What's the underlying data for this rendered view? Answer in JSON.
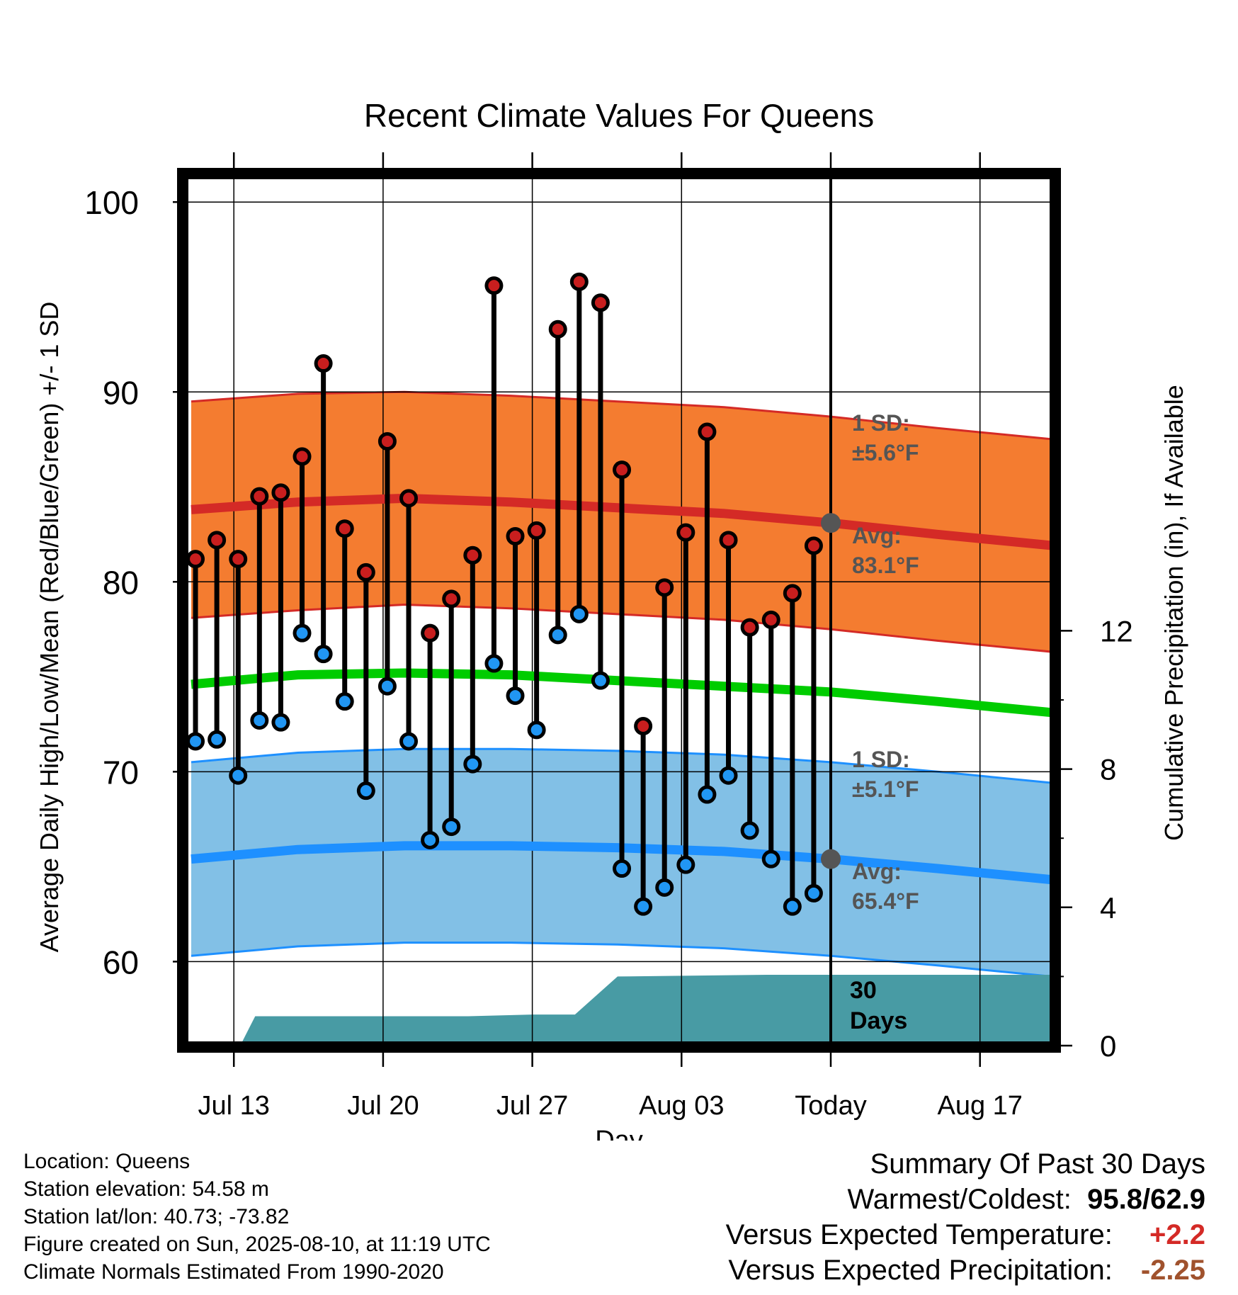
{
  "chart_data": {
    "type": "line",
    "title": "Recent Climate Values For Queens",
    "xlabel": "Day",
    "ylabel": "Average Daily High/Low/Mean (Red/Blue/Green) +/- 1 SD",
    "y2label": "Cumulative Precipitation (in), If Available",
    "ylim": [
      55.5,
      101.5
    ],
    "y_ticks": [
      "60",
      "70",
      "80",
      "90",
      "100"
    ],
    "y2lim": [
      0,
      24.5
    ],
    "y2_ticks": [
      "0",
      "4",
      "8",
      "12"
    ],
    "x_start": "Jul 11",
    "x_end": "Aug 21",
    "x_ticks": [
      {
        "day": 2,
        "label": "Jul 13"
      },
      {
        "day": 9,
        "label": "Jul 20"
      },
      {
        "day": 16,
        "label": "Jul 27"
      },
      {
        "day": 23,
        "label": "Aug 03"
      },
      {
        "day": 30,
        "label": "Today"
      },
      {
        "day": 37,
        "label": "Aug 17"
      }
    ],
    "days": [
      "Jul 11",
      "Jul 12",
      "Jul 13",
      "Jul 14",
      "Jul 15",
      "Jul 16",
      "Jul 17",
      "Jul 18",
      "Jul 19",
      "Jul 20",
      "Jul 21",
      "Jul 22",
      "Jul 23",
      "Jul 24",
      "Jul 25",
      "Jul 26",
      "Jul 27",
      "Jul 28",
      "Jul 29",
      "Jul 30",
      "Jul 31",
      "Aug 01",
      "Aug 02",
      "Aug 03",
      "Aug 04",
      "Aug 05",
      "Aug 06",
      "Aug 07",
      "Aug 08",
      "Aug 09"
    ],
    "daily_high": [
      81.2,
      82.2,
      81.2,
      84.5,
      84.7,
      86.6,
      91.5,
      82.8,
      80.5,
      87.4,
      84.4,
      77.3,
      79.1,
      81.4,
      95.6,
      82.4,
      82.7,
      93.3,
      95.8,
      94.7,
      85.9,
      72.4,
      79.7,
      82.6,
      87.9,
      82.2,
      77.6,
      78.0,
      79.4,
      81.9
    ],
    "daily_low": [
      71.6,
      71.7,
      69.8,
      72.7,
      72.6,
      77.3,
      76.2,
      73.7,
      69.0,
      74.5,
      71.6,
      66.4,
      67.1,
      70.4,
      75.7,
      74.0,
      72.2,
      77.2,
      78.3,
      74.8,
      64.9,
      62.9,
      63.9,
      65.1,
      68.8,
      69.8,
      66.9,
      65.4,
      62.9,
      63.6
    ],
    "normal_x": [
      0,
      5,
      10,
      15,
      20,
      25,
      30,
      35,
      40.5
    ],
    "normal_high": [
      83.8,
      84.2,
      84.4,
      84.2,
      83.9,
      83.6,
      83.1,
      82.5,
      81.9
    ],
    "normal_high_upper": [
      89.5,
      89.9,
      90.0,
      89.8,
      89.5,
      89.2,
      88.7,
      88.1,
      87.5
    ],
    "normal_high_lower": [
      78.1,
      78.5,
      78.8,
      78.6,
      78.3,
      78.0,
      77.5,
      76.9,
      76.3
    ],
    "normal_mean": [
      74.6,
      75.1,
      75.2,
      75.1,
      74.8,
      74.5,
      74.2,
      73.7,
      73.1
    ],
    "normal_low": [
      65.4,
      65.9,
      66.1,
      66.1,
      66.0,
      65.8,
      65.4,
      64.9,
      64.3
    ],
    "normal_low_upper": [
      70.5,
      71.0,
      71.2,
      71.2,
      71.1,
      70.9,
      70.5,
      70.0,
      69.4
    ],
    "normal_low_lower": [
      60.3,
      60.8,
      61.0,
      61.0,
      60.9,
      60.7,
      60.3,
      59.8,
      59.2
    ],
    "precip_x": [
      2.3,
      3.0,
      13.0,
      16.0,
      18.0,
      20.0,
      27.0,
      40.5
    ],
    "cumulative_precip": [
      0.0,
      0.85,
      0.85,
      0.9,
      0.9,
      2.0,
      2.05,
      2.05
    ],
    "today_index": 30,
    "annotations": {
      "high_sd_line1": "1 SD:",
      "high_sd_line2": "±5.6°F",
      "high_avg_line1": "Avg:",
      "high_avg_line2": "83.1°F",
      "low_sd_line1": "1 SD:",
      "low_sd_line2": "±5.1°F",
      "low_avg_line1": "Avg:",
      "low_avg_line2": "65.4°F",
      "precip_line1": "30",
      "precip_line2": "Days"
    },
    "today_high_avg": 83.1,
    "today_low_avg": 65.4
  },
  "colors": {
    "high_band": "#F47C30",
    "high_line": "#D42A26",
    "mean_line": "#00CC00",
    "low_band": "#82C0E6",
    "low_line": "#1E90FF",
    "precip_fill": "#489BA4",
    "high_dot": "#C81E1E",
    "low_dot": "#2196F3",
    "annotation": "#555555",
    "warm_value": "#D42A26",
    "precip_value": "#A0522D"
  },
  "footer": {
    "location": "Location: Queens",
    "elevation": "Station elevation: 54.58 m",
    "latlon": "Station lat/lon: 40.73; -73.82",
    "created": "Figure created on Sun, 2025-08-10, at 11:19 UTC",
    "normals": "Climate Normals Estimated From 1990-2020"
  },
  "summary": {
    "title": "Summary Of Past 30 Days",
    "warm_cold_label": "Warmest/Coldest:",
    "warm_cold_value": "95.8/62.9",
    "temp_label": "Versus Expected Temperature:",
    "temp_value": "+2.2",
    "precip_label": "Versus Expected Precipitation:",
    "precip_value": "-2.25"
  }
}
